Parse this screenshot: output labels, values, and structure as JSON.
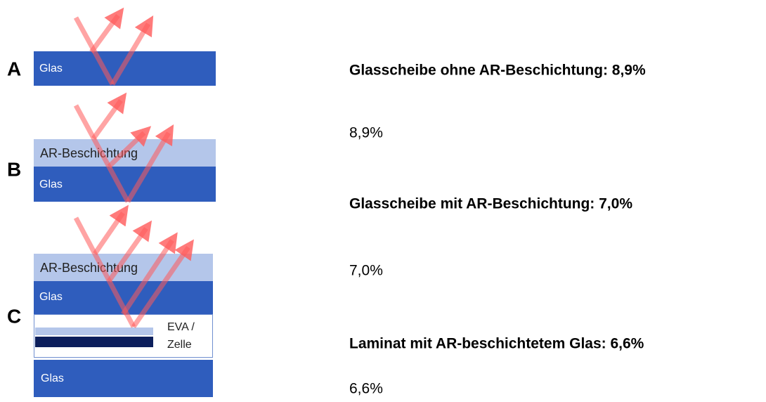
{
  "panels": [
    {
      "letter": "A",
      "layers": [
        "Glas"
      ]
    },
    {
      "letter": "B",
      "layers": [
        "AR-Beschichtung",
        "Glas"
      ]
    },
    {
      "letter": "C",
      "layers": [
        "AR-Beschichtung",
        "Glas"
      ],
      "eva": [
        "EVA /",
        "Zelle"
      ],
      "bottom": "Glas"
    }
  ],
  "results": [
    {
      "heading": "Glasscheibe ohne AR-Beschichtung: 8,9%",
      "value": "8,9%"
    },
    {
      "heading": "Glasscheibe mit AR-Beschichtung: 7,0%",
      "value": "7,0%"
    },
    {
      "heading": "Laminat mit AR-beschichtetem Glas: 6,6%",
      "value": "6,6%"
    }
  ]
}
